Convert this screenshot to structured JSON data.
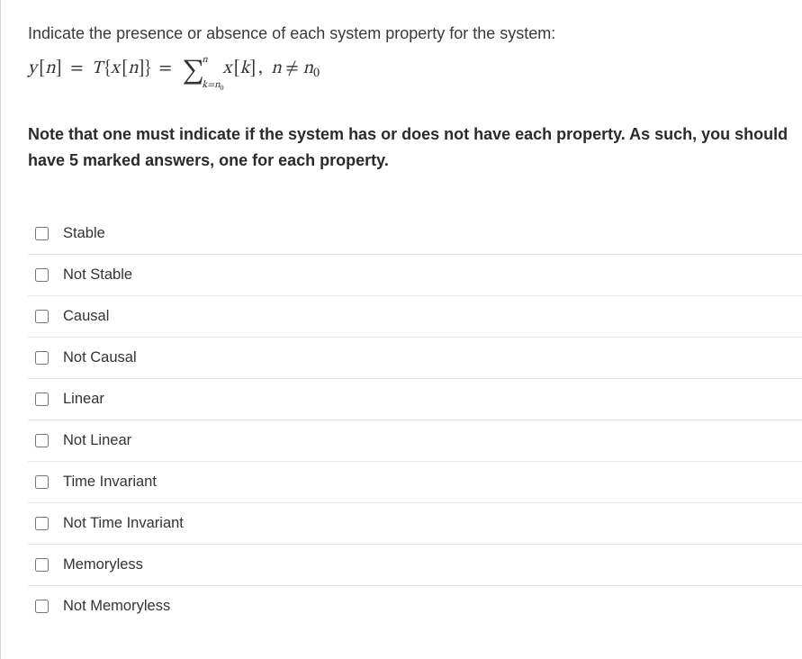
{
  "prompt": "Indicate the presence or absence of each system property for the system:",
  "note": "Note that one must indicate if the system has or does not have each property. As such, you should have 5 marked answers, one for each property.",
  "options": [
    "Stable",
    "Not Stable",
    "Causal",
    "Not Causal",
    "Linear",
    "Not Linear",
    "Time Invariant",
    "Not Time Invariant",
    "Memoryless",
    "Not Memoryless"
  ],
  "colors": {
    "text": "#2b2b2b",
    "muted_text": "#3a3a3a",
    "border": "#e6e6e6",
    "left_border": "#d9d9d9",
    "background": "#ffffff"
  },
  "fonts": {
    "body_size_pt": 14,
    "note_weight": 700,
    "equation_family": "serif"
  }
}
